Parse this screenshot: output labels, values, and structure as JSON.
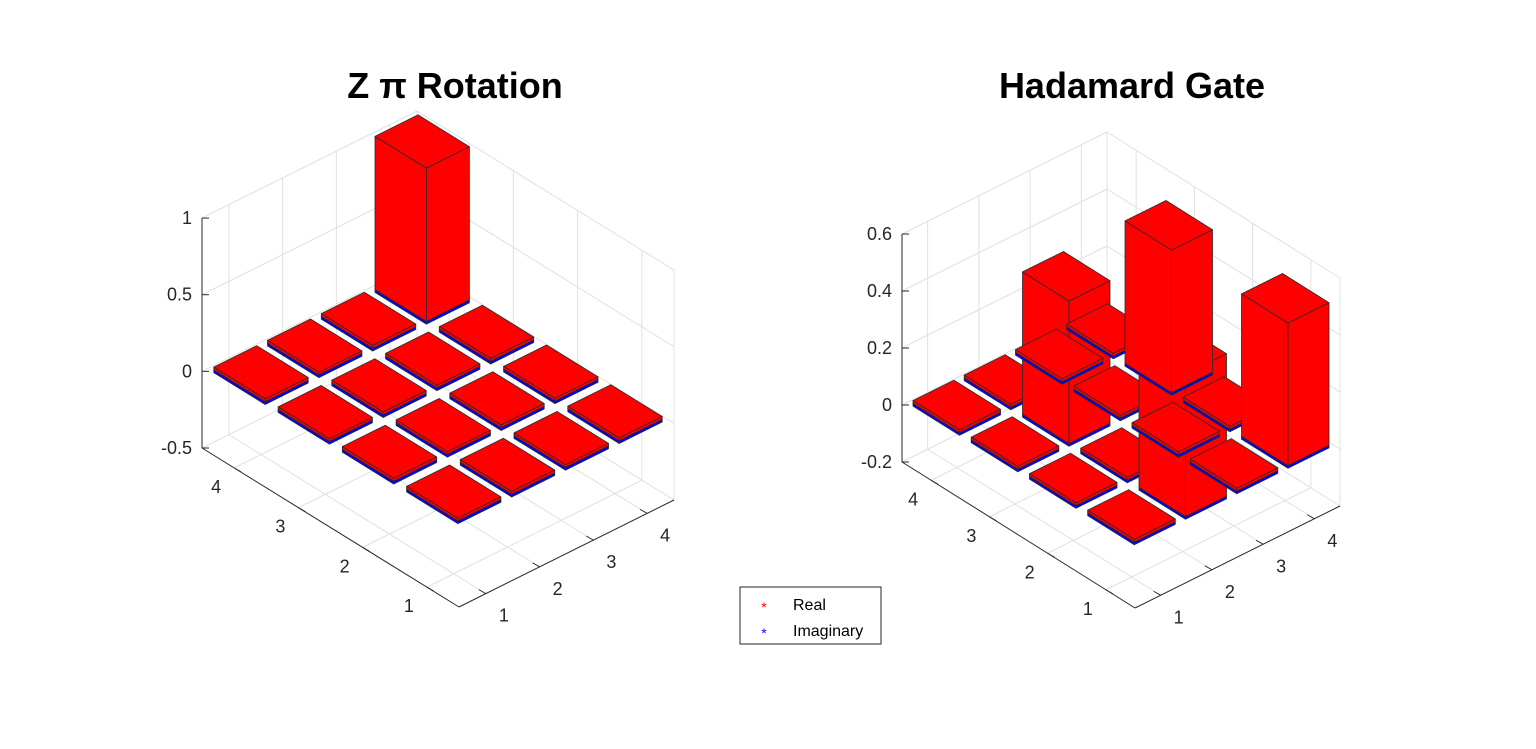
{
  "chart_data": [
    {
      "type": "bar3d",
      "title": "Z π Rotation",
      "rows": [
        1,
        2,
        3,
        4
      ],
      "cols": [
        1,
        2,
        3,
        4
      ],
      "zlim": [
        -0.5,
        1
      ],
      "zticks": [
        -0.5,
        0,
        0.5,
        1
      ],
      "zticklabels": [
        "-0.5",
        "0",
        "0.5",
        "1"
      ],
      "grid": true,
      "series": [
        {
          "name": "Real",
          "color": "#ff0000",
          "values": [
            [
              0,
              0,
              0,
              0
            ],
            [
              0,
              0,
              0,
              0
            ],
            [
              0,
              0,
              0,
              0
            ],
            [
              0,
              0,
              0,
              1
            ]
          ]
        },
        {
          "name": "Imaginary",
          "color": "#0000ff",
          "values": [
            [
              0,
              0,
              0,
              0
            ],
            [
              0,
              0,
              0,
              0
            ],
            [
              0,
              0,
              0,
              0
            ],
            [
              0,
              0,
              0,
              0
            ]
          ]
        }
      ]
    },
    {
      "type": "bar3d",
      "title": "Hadamard Gate",
      "rows": [
        1,
        2,
        3,
        4
      ],
      "cols": [
        1,
        2,
        3,
        4
      ],
      "zlim": [
        -0.2,
        0.6
      ],
      "zticks": [
        -0.2,
        0,
        0.2,
        0.4,
        0.6
      ],
      "zticklabels": [
        "-0.2",
        "0",
        "0.2",
        "0.4",
        "0.6"
      ],
      "grid": true,
      "series": [
        {
          "name": "Real",
          "color": "#ff0000",
          "values": [
            [
              0,
              0.5,
              0,
              0.5
            ],
            [
              0,
              0,
              0,
              0
            ],
            [
              0,
              0.5,
              0,
              0.5
            ],
            [
              0,
              0,
              0,
              0
            ]
          ]
        },
        {
          "name": "Imaginary",
          "color": "#0000ff",
          "values": [
            [
              0,
              0,
              0,
              0
            ],
            [
              0,
              0,
              0,
              0
            ],
            [
              0,
              0,
              0,
              0
            ],
            [
              0,
              0,
              0,
              0
            ]
          ]
        }
      ]
    }
  ],
  "legend": {
    "placement": "bottom-center",
    "marker": "*",
    "entries": [
      {
        "label": "Real",
        "color": "#ff0000"
      },
      {
        "label": "Imaginary",
        "color": "#0000ff"
      }
    ]
  }
}
